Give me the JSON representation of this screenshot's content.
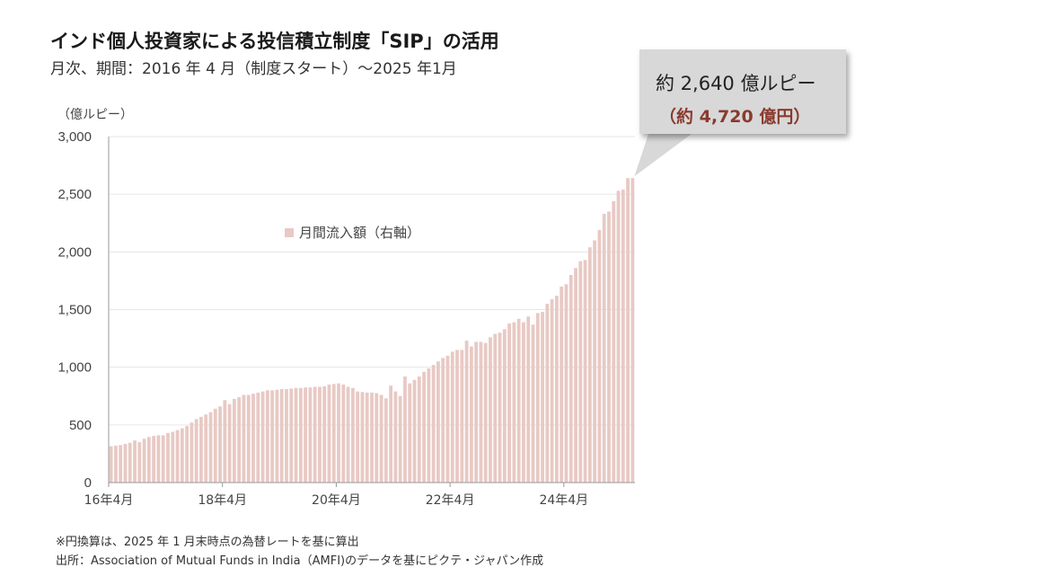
{
  "title": "インド個人投資家による投信積立制度「SIP」の活用",
  "subtitle": "月次、期間：2016 年 4 月（制度スタート）〜2025 年1月",
  "unit_label": "（億ルピー）",
  "legend_label": "月間流入額（右軸）",
  "callout": {
    "line1": "約 2,640 億ルピー",
    "line2": "（約 4,720 億円）"
  },
  "footnotes": [
    "※円換算は、2025 年 1 月末時点の為替レートを基に算出",
    "出所：Association of Mutual Funds in India（AMFI)のデータを基にピクテ・ジャパン作成"
  ],
  "colors": {
    "bar": "#e8c9c4",
    "callout_bg": "#d8d8d8",
    "callout_yen": "#8a3a2e"
  },
  "chart_data": {
    "type": "bar",
    "ylabel": "（億ルピー）",
    "ylim": [
      0,
      3000
    ],
    "y_ticks": [
      "0",
      "500",
      "1,000",
      "1,500",
      "2,000",
      "2,500",
      "3,000"
    ],
    "x_tick_labels": [
      {
        "label": "16年4月",
        "index": 0
      },
      {
        "label": "18年4月",
        "index": 24
      },
      {
        "label": "20年4月",
        "index": 48
      },
      {
        "label": "22年4月",
        "index": 72
      },
      {
        "label": "24年4月",
        "index": 96
      }
    ],
    "grid": true,
    "series": [
      {
        "name": "月間流入額（右軸）",
        "start": "2016-04",
        "end": "2025-01",
        "values": [
          315,
          320,
          325,
          335,
          345,
          365,
          350,
          380,
          395,
          405,
          410,
          410,
          430,
          440,
          455,
          470,
          490,
          520,
          550,
          570,
          590,
          610,
          640,
          660,
          715,
          680,
          725,
          740,
          760,
          760,
          770,
          780,
          790,
          800,
          800,
          805,
          810,
          810,
          815,
          820,
          820,
          825,
          825,
          830,
          830,
          835,
          850,
          855,
          860,
          850,
          830,
          820,
          790,
          785,
          780,
          780,
          775,
          760,
          730,
          840,
          790,
          750,
          920,
          860,
          890,
          920,
          960,
          990,
          1020,
          1050,
          1080,
          1100,
          1135,
          1150,
          1150,
          1230,
          1180,
          1220,
          1220,
          1210,
          1260,
          1290,
          1300,
          1330,
          1380,
          1390,
          1420,
          1390,
          1440,
          1370,
          1470,
          1480,
          1550,
          1590,
          1620,
          1700,
          1720,
          1800,
          1860,
          1920,
          1930,
          2040,
          2100,
          2190,
          2330,
          2350,
          2440,
          2530,
          2540,
          2640,
          2640
        ]
      }
    ]
  }
}
